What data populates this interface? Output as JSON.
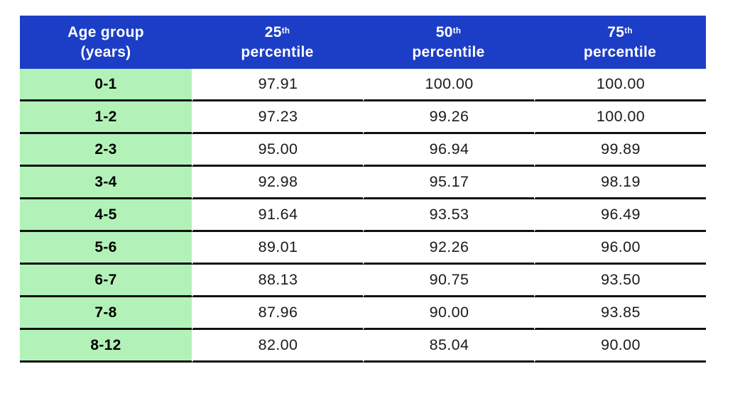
{
  "colors": {
    "header_bg": "#1c3ec6",
    "header_text": "#ffffff",
    "age_column_bg": "#b2f2b8",
    "row_border": "#101010",
    "value_text": "#1b1b1b",
    "page_bg": "#ffffff"
  },
  "table": {
    "headers": [
      {
        "line1": "Age group",
        "line2": "(years)"
      },
      {
        "num": "25",
        "sup": "th",
        "label": "percentile"
      },
      {
        "num": "50",
        "sup": "th",
        "label": "percentile"
      },
      {
        "num": "75",
        "sup": "th",
        "label": "percentile"
      }
    ],
    "rows": [
      {
        "age_group": "0-1",
        "p25": "97.91",
        "p50": "100.00",
        "p75": "100.00"
      },
      {
        "age_group": "1-2",
        "p25": "97.23",
        "p50": "99.26",
        "p75": "100.00"
      },
      {
        "age_group": "2-3",
        "p25": "95.00",
        "p50": "96.94",
        "p75": "99.89"
      },
      {
        "age_group": "3-4",
        "p25": "92.98",
        "p50": "95.17",
        "p75": "98.19"
      },
      {
        "age_group": "4-5",
        "p25": "91.64",
        "p50": "93.53",
        "p75": "96.49"
      },
      {
        "age_group": "5-6",
        "p25": "89.01",
        "p50": "92.26",
        "p75": "96.00"
      },
      {
        "age_group": "6-7",
        "p25": "88.13",
        "p50": "90.75",
        "p75": "93.50"
      },
      {
        "age_group": "7-8",
        "p25": "87.96",
        "p50": "90.00",
        "p75": "93.85"
      },
      {
        "age_group": "8-12",
        "p25": "82.00",
        "p50": "85.04",
        "p75": "90.00"
      }
    ]
  },
  "chart_data": {
    "type": "table",
    "title": "",
    "columns": [
      "Age group (years)",
      "25th percentile",
      "50th percentile",
      "75th percentile"
    ],
    "rows": [
      [
        "0-1",
        97.91,
        100.0,
        100.0
      ],
      [
        "1-2",
        97.23,
        99.26,
        100.0
      ],
      [
        "2-3",
        95.0,
        96.94,
        99.89
      ],
      [
        "3-4",
        92.98,
        95.17,
        98.19
      ],
      [
        "4-5",
        91.64,
        93.53,
        96.49
      ],
      [
        "5-6",
        89.01,
        92.26,
        96.0
      ],
      [
        "6-7",
        88.13,
        90.75,
        93.5
      ],
      [
        "7-8",
        87.96,
        90.0,
        93.85
      ],
      [
        "8-12",
        82.0,
        85.04,
        90.0
      ]
    ]
  }
}
